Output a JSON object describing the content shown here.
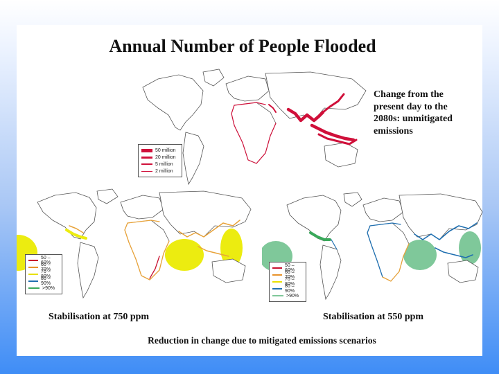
{
  "title": "Annual Number of People Flooded",
  "description": "Change from the\npresent day to the\n2080s: unmitigated\nemissions",
  "legend_top": {
    "items": [
      {
        "label": "50 million",
        "color": "#d0103a",
        "weight": 5
      },
      {
        "label": "20 million",
        "color": "#d0103a",
        "weight": 3
      },
      {
        "label": "5 million",
        "color": "#d0103a",
        "weight": 1.2
      },
      {
        "label": "2 million",
        "color": "#d0103a",
        "weight": 0.5
      }
    ]
  },
  "legend_750": {
    "items": [
      {
        "label": "50 – 60%",
        "color": "#c8102e"
      },
      {
        "label": "60 – 70%",
        "color": "#e8922a"
      },
      {
        "label": "70 – 80%",
        "color": "#e8e000"
      },
      {
        "label": "80 – 90%",
        "color": "#1f6fb0"
      },
      {
        "label": ">90%",
        "color": "#3aa85a"
      }
    ]
  },
  "legend_550": {
    "items": [
      {
        "label": "50 – 60%",
        "color": "#c8102e"
      },
      {
        "label": "60 – 70%",
        "color": "#e8922a"
      },
      {
        "label": "70 – 80%",
        "color": "#e8e000"
      },
      {
        "label": "80 – 90%",
        "color": "#1f6fb0"
      },
      {
        "label": ">90%",
        "color": "#7fc89a"
      }
    ]
  },
  "caption_750": "Stabilisation at 750 ppm",
  "caption_550": "Stabilisation at 550 ppm",
  "bottom_caption": "Reduction in change due to mitigated emissions scenarios",
  "colors": {
    "red": "#d0103a",
    "orange": "#e8a33a",
    "yellow": "#ecec10",
    "blue": "#1f6fb0",
    "green": "#7fc89a",
    "land_outline": "#555555"
  }
}
